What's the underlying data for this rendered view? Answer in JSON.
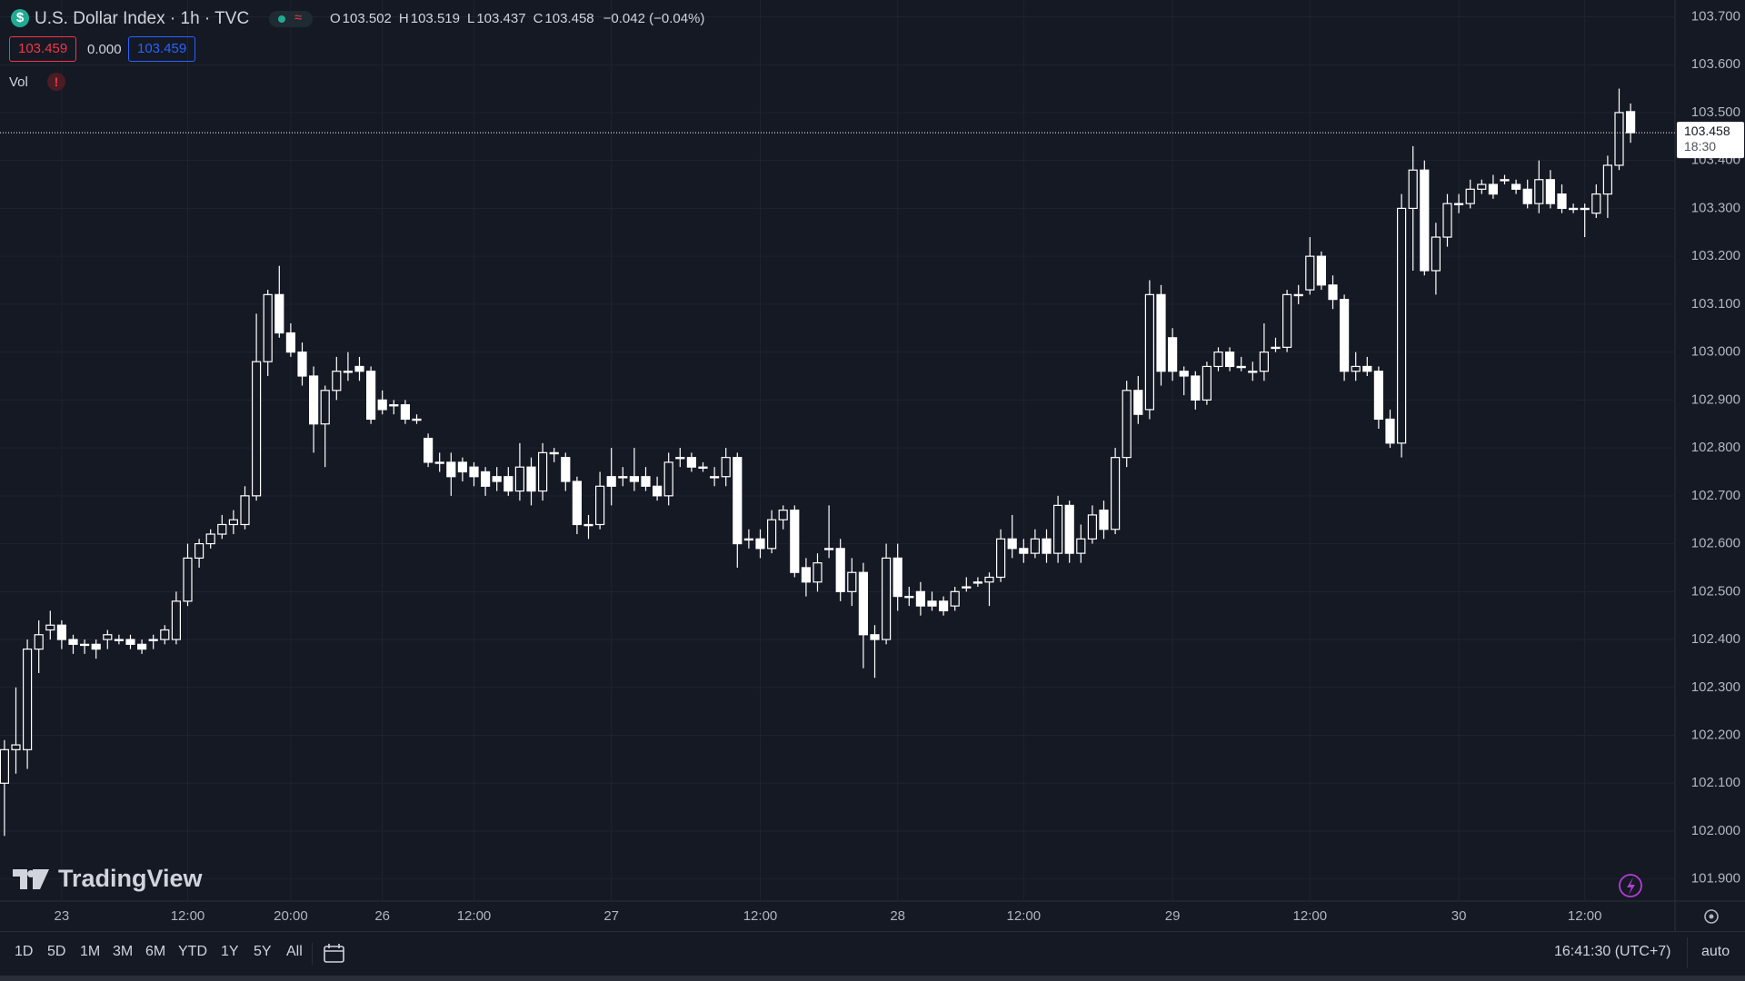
{
  "header": {
    "symbol": "U.S. Dollar Index · 1h · TVC",
    "ohlc_letters": [
      "O",
      "H",
      "L",
      "C"
    ],
    "change": "−0.042 (−0.04%)"
  },
  "indicators": {
    "bid": "103.459",
    "spread": "0.000",
    "ask": "103.459",
    "vol": "Vol",
    "alert": "!"
  },
  "logo": "TradingView",
  "chart_data": {
    "type": "candlestick",
    "style": "hollow",
    "color": "#ffffff",
    "grid": true,
    "countdown": "18:30",
    "categories": [
      null,
      null,
      null,
      null,
      null,
      "23",
      null,
      null,
      null,
      null,
      null,
      null,
      null,
      null,
      null,
      null,
      "12:00",
      null,
      null,
      null,
      null,
      null,
      null,
      null,
      null,
      "20:00",
      null,
      null,
      null,
      null,
      null,
      null,
      null,
      "26",
      null,
      null,
      null,
      null,
      null,
      null,
      null,
      "12:00",
      null,
      null,
      null,
      null,
      null,
      null,
      null,
      null,
      null,
      null,
      null,
      "27",
      null,
      null,
      null,
      null,
      null,
      null,
      null,
      null,
      null,
      null,
      null,
      null,
      "12:00",
      null,
      null,
      null,
      null,
      null,
      null,
      null,
      null,
      null,
      null,
      null,
      "28",
      null,
      null,
      null,
      null,
      null,
      null,
      null,
      null,
      null,
      null,
      "12:00",
      null,
      null,
      null,
      null,
      null,
      null,
      null,
      null,
      null,
      null,
      null,
      null,
      "29",
      null,
      null,
      null,
      null,
      null,
      null,
      null,
      null,
      null,
      null,
      null,
      "12:00",
      null,
      null,
      null,
      null,
      null,
      null,
      null,
      null,
      null,
      null,
      null,
      null,
      "30",
      null,
      null,
      null,
      null,
      null,
      null,
      null,
      null,
      null,
      null,
      "12:00",
      null,
      null,
      null,
      null
    ],
    "open": [
      102.1,
      102.17,
      102.17,
      102.38,
      102.42,
      102.43,
      102.4,
      102.39,
      102.39,
      102.4,
      102.4,
      102.4,
      102.39,
      102.4,
      102.4,
      102.4,
      102.48,
      102.57,
      102.6,
      102.62,
      102.64,
      102.64,
      102.7,
      102.98,
      103.12,
      103.04,
      103.0,
      102.95,
      102.85,
      102.92,
      102.96,
      102.97,
      102.96,
      102.9,
      102.89,
      102.89,
      102.86,
      102.82,
      102.77,
      102.77,
      102.77,
      102.76,
      102.75,
      102.74,
      102.74,
      102.71,
      102.76,
      102.71,
      102.79,
      102.78,
      102.73,
      102.64,
      102.64,
      102.74,
      102.74,
      102.74,
      102.74,
      102.72,
      102.7,
      102.78,
      102.78,
      102.76,
      102.74,
      102.74,
      102.78,
      102.61,
      102.61,
      102.59,
      102.65,
      102.67,
      102.55,
      102.52,
      102.59,
      102.59,
      102.5,
      102.54,
      102.41,
      102.4,
      102.57,
      102.49,
      102.5,
      102.48,
      102.48,
      102.47,
      102.51,
      102.52,
      102.52,
      102.53,
      102.61,
      102.59,
      102.58,
      102.61,
      102.58,
      102.68,
      102.58,
      102.61,
      102.67,
      102.63,
      102.78,
      102.92,
      102.88,
      103.12,
      103.03,
      102.96,
      102.95,
      102.9,
      102.97,
      103.0,
      102.97,
      102.96,
      102.96,
      103.01,
      103.01,
      103.12,
      103.13,
      103.2,
      103.14,
      103.11,
      102.96,
      102.97,
      102.96,
      102.86,
      102.81,
      103.3,
      103.38,
      103.17,
      103.24,
      103.31,
      103.31,
      103.34,
      103.35,
      103.36,
      103.35,
      103.34,
      103.31,
      103.36,
      103.33,
      103.3,
      103.3,
      103.29,
      103.33,
      103.39,
      103.502
    ],
    "high": [
      102.19,
      102.3,
      102.4,
      102.44,
      102.46,
      102.44,
      102.41,
      102.4,
      102.4,
      102.42,
      102.41,
      102.41,
      102.4,
      102.41,
      102.43,
      102.5,
      102.6,
      102.61,
      102.63,
      102.66,
      102.67,
      102.72,
      103.08,
      103.13,
      103.18,
      103.06,
      103.02,
      102.97,
      102.93,
      102.99,
      103.0,
      102.99,
      102.97,
      102.92,
      102.9,
      102.9,
      102.87,
      102.83,
      102.79,
      102.79,
      102.78,
      102.77,
      102.76,
      102.76,
      102.76,
      102.81,
      102.78,
      102.81,
      102.8,
      102.79,
      102.74,
      102.66,
      102.75,
      102.8,
      102.76,
      102.8,
      102.76,
      102.74,
      102.79,
      102.8,
      102.79,
      102.77,
      102.76,
      102.8,
      102.79,
      102.63,
      102.63,
      102.67,
      102.68,
      102.68,
      102.57,
      102.58,
      102.68,
      102.61,
      102.57,
      102.56,
      102.43,
      102.6,
      102.6,
      102.51,
      102.52,
      102.5,
      102.49,
      102.51,
      102.53,
      102.53,
      102.54,
      102.63,
      102.66,
      102.61,
      102.63,
      102.63,
      102.7,
      102.69,
      102.64,
      102.68,
      102.69,
      102.8,
      102.94,
      102.95,
      103.15,
      103.14,
      103.05,
      102.97,
      102.96,
      102.98,
      103.01,
      103.01,
      102.99,
      102.98,
      103.06,
      103.03,
      103.13,
      103.14,
      103.24,
      103.21,
      103.16,
      103.12,
      103.0,
      102.99,
      102.97,
      102.88,
      103.33,
      103.43,
      103.4,
      103.27,
      103.33,
      103.33,
      103.36,
      103.36,
      103.37,
      103.37,
      103.36,
      103.36,
      103.4,
      103.38,
      103.35,
      103.31,
      103.31,
      103.35,
      103.41,
      103.55,
      103.519
    ],
    "low": [
      101.99,
      102.12,
      102.13,
      102.33,
      102.4,
      102.38,
      102.37,
      102.37,
      102.36,
      102.38,
      102.39,
      102.38,
      102.37,
      102.38,
      102.39,
      102.39,
      102.47,
      102.55,
      102.59,
      102.61,
      102.62,
      102.63,
      102.69,
      102.95,
      103.03,
      102.99,
      102.93,
      102.79,
      102.76,
      102.9,
      102.94,
      102.94,
      102.85,
      102.87,
      102.87,
      102.85,
      102.85,
      102.76,
      102.75,
      102.7,
      102.73,
      102.72,
      102.7,
      102.71,
      102.7,
      102.69,
      102.68,
      102.69,
      102.77,
      102.71,
      102.62,
      102.61,
      102.63,
      102.68,
      102.72,
      102.71,
      102.71,
      102.69,
      102.68,
      102.76,
      102.75,
      102.75,
      102.72,
      102.72,
      102.55,
      102.59,
      102.57,
      102.58,
      102.63,
      102.53,
      102.49,
      102.5,
      102.57,
      102.48,
      102.47,
      102.34,
      102.32,
      102.39,
      102.46,
      102.47,
      102.45,
      102.46,
      102.45,
      102.46,
      102.5,
      102.51,
      102.47,
      102.52,
      102.57,
      102.56,
      102.57,
      102.56,
      102.56,
      102.56,
      102.56,
      102.6,
      102.61,
      102.62,
      102.76,
      102.85,
      102.86,
      102.93,
      102.94,
      102.91,
      102.88,
      102.89,
      102.96,
      102.96,
      102.96,
      102.94,
      102.94,
      103.0,
      103.0,
      103.1,
      103.12,
      103.13,
      103.09,
      102.94,
      102.94,
      102.95,
      102.84,
      102.8,
      102.78,
      103.17,
      103.16,
      103.12,
      103.22,
      103.29,
      103.3,
      103.33,
      103.32,
      103.35,
      103.33,
      103.3,
      103.29,
      103.3,
      103.29,
      103.29,
      103.24,
      103.28,
      103.28,
      103.38,
      103.437
    ],
    "close": [
      102.17,
      102.18,
      102.38,
      102.41,
      102.43,
      102.4,
      102.39,
      102.39,
      102.38,
      102.41,
      102.4,
      102.39,
      102.38,
      102.4,
      102.42,
      102.48,
      102.57,
      102.6,
      102.62,
      102.64,
      102.65,
      102.7,
      102.98,
      103.12,
      103.04,
      103.0,
      102.95,
      102.85,
      102.92,
      102.96,
      102.96,
      102.96,
      102.86,
      102.88,
      102.89,
      102.86,
      102.86,
      102.77,
      102.77,
      102.74,
      102.75,
      102.74,
      102.72,
      102.73,
      102.71,
      102.76,
      102.71,
      102.79,
      102.79,
      102.73,
      102.64,
      102.64,
      102.72,
      102.72,
      102.74,
      102.73,
      102.72,
      102.7,
      102.77,
      102.78,
      102.76,
      102.76,
      102.74,
      102.78,
      102.6,
      102.61,
      102.59,
      102.65,
      102.67,
      102.54,
      102.52,
      102.56,
      102.59,
      102.5,
      102.54,
      102.41,
      102.4,
      102.57,
      102.49,
      102.49,
      102.47,
      102.47,
      102.46,
      102.5,
      102.51,
      102.52,
      102.53,
      102.61,
      102.59,
      102.58,
      102.61,
      102.58,
      102.68,
      102.58,
      102.61,
      102.66,
      102.63,
      102.78,
      102.92,
      102.87,
      103.12,
      102.96,
      102.96,
      102.95,
      102.9,
      102.97,
      103.0,
      102.97,
      102.97,
      102.96,
      103.0,
      103.01,
      103.12,
      103.12,
      103.2,
      103.14,
      103.11,
      102.96,
      102.97,
      102.96,
      102.86,
      102.81,
      103.3,
      103.38,
      103.17,
      103.24,
      103.31,
      103.31,
      103.34,
      103.35,
      103.33,
      103.36,
      103.34,
      103.31,
      103.36,
      103.31,
      103.3,
      103.3,
      103.3,
      103.33,
      103.39,
      103.5,
      103.458
    ],
    "ylim": [
      101.854,
      103.735
    ],
    "yticks": [
      {
        "value": 101.9,
        "label": "101.900"
      },
      {
        "value": 102.0,
        "label": "102.000"
      },
      {
        "value": 102.1,
        "label": "102.100"
      },
      {
        "value": 102.2,
        "label": "102.200"
      },
      {
        "value": 102.3,
        "label": "102.300"
      },
      {
        "value": 102.4,
        "label": "102.400"
      },
      {
        "value": 102.5,
        "label": "102.500"
      },
      {
        "value": 102.6,
        "label": "102.600"
      },
      {
        "value": 102.7,
        "label": "102.700"
      },
      {
        "value": 102.8,
        "label": "102.800"
      },
      {
        "value": 102.9,
        "label": "102.900"
      },
      {
        "value": 103.0,
        "label": "103.000"
      },
      {
        "value": 103.1,
        "label": "103.100"
      },
      {
        "value": 103.2,
        "label": "103.200"
      },
      {
        "value": 103.3,
        "label": "103.300"
      },
      {
        "value": 103.4,
        "label": "103.400"
      },
      {
        "value": 103.5,
        "label": "103.500"
      },
      {
        "value": 103.6,
        "label": "103.600"
      },
      {
        "value": 103.7,
        "label": "103.700"
      }
    ]
  },
  "footer": {
    "ranges": [
      "1D",
      "5D",
      "1M",
      "3M",
      "6M",
      "YTD",
      "1Y",
      "5Y",
      "All"
    ],
    "clock": "16:41:30 (UTC+7)",
    "scale_mode": "auto"
  }
}
